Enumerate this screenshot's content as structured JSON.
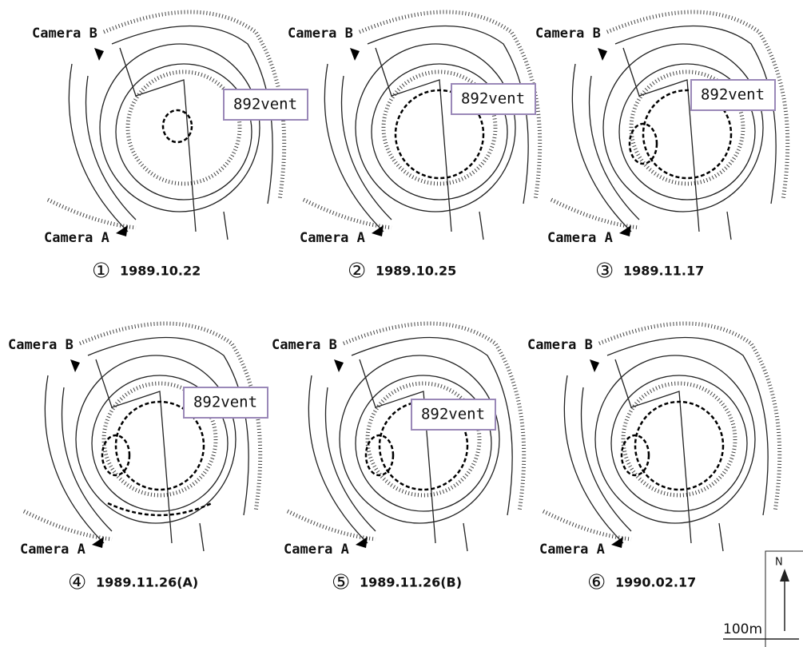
{
  "panels": [
    {
      "number": "①",
      "date": "1989.10.22",
      "camera_a": "Camera A",
      "camera_b": "Camera B",
      "vent": "892vent"
    },
    {
      "number": "②",
      "date": "1989.10.25",
      "camera_a": "Camera A",
      "camera_b": "Camera B",
      "vent": "892vent"
    },
    {
      "number": "③",
      "date": "1989.11.17",
      "camera_a": "Camera A",
      "camera_b": "Camera B",
      "vent": "892vent"
    },
    {
      "number": "④",
      "date": "1989.11.26(A)",
      "camera_a": "Camera A",
      "camera_b": "Camera B",
      "vent": "892vent"
    },
    {
      "number": "⑤",
      "date": "1989.11.26(B)",
      "camera_a": "Camera A",
      "camera_b": "Camera B",
      "vent": "892vent"
    },
    {
      "number": "⑥",
      "date": "1990.02.17",
      "camera_a": "Camera A",
      "camera_b": "Camera B"
    }
  ],
  "scale": {
    "north": "N",
    "distance": "100m"
  }
}
